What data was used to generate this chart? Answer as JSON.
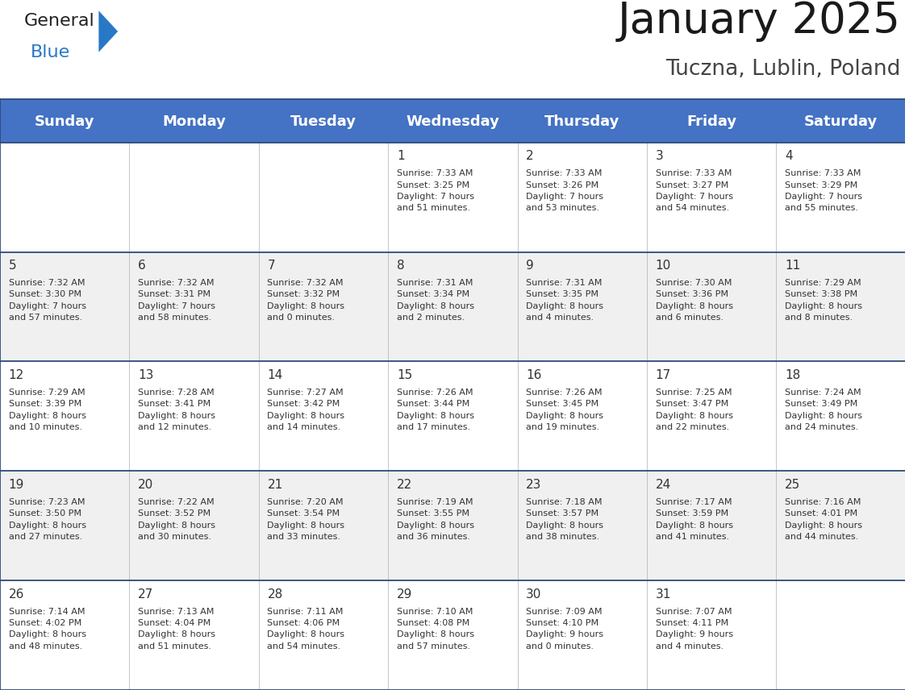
{
  "title": "January 2025",
  "subtitle": "Tuczna, Lublin, Poland",
  "header_bg": "#4472C4",
  "header_text_color": "#FFFFFF",
  "header_font_size": 13,
  "day_names": [
    "Sunday",
    "Monday",
    "Tuesday",
    "Wednesday",
    "Thursday",
    "Friday",
    "Saturday"
  ],
  "title_font_size": 38,
  "subtitle_font_size": 19,
  "cell_text_color": "#333333",
  "cell_number_color": "#333333",
  "odd_row_bg": "#FFFFFF",
  "even_row_bg": "#F0F0F0",
  "border_color": "#2E4A7A",
  "logo_general_color": "#222222",
  "logo_blue_color": "#2878C8",
  "weeks": [
    [
      {
        "day": null,
        "text": ""
      },
      {
        "day": null,
        "text": ""
      },
      {
        "day": null,
        "text": ""
      },
      {
        "day": 1,
        "text": "Sunrise: 7:33 AM\nSunset: 3:25 PM\nDaylight: 7 hours\nand 51 minutes."
      },
      {
        "day": 2,
        "text": "Sunrise: 7:33 AM\nSunset: 3:26 PM\nDaylight: 7 hours\nand 53 minutes."
      },
      {
        "day": 3,
        "text": "Sunrise: 7:33 AM\nSunset: 3:27 PM\nDaylight: 7 hours\nand 54 minutes."
      },
      {
        "day": 4,
        "text": "Sunrise: 7:33 AM\nSunset: 3:29 PM\nDaylight: 7 hours\nand 55 minutes."
      }
    ],
    [
      {
        "day": 5,
        "text": "Sunrise: 7:32 AM\nSunset: 3:30 PM\nDaylight: 7 hours\nand 57 minutes."
      },
      {
        "day": 6,
        "text": "Sunrise: 7:32 AM\nSunset: 3:31 PM\nDaylight: 7 hours\nand 58 minutes."
      },
      {
        "day": 7,
        "text": "Sunrise: 7:32 AM\nSunset: 3:32 PM\nDaylight: 8 hours\nand 0 minutes."
      },
      {
        "day": 8,
        "text": "Sunrise: 7:31 AM\nSunset: 3:34 PM\nDaylight: 8 hours\nand 2 minutes."
      },
      {
        "day": 9,
        "text": "Sunrise: 7:31 AM\nSunset: 3:35 PM\nDaylight: 8 hours\nand 4 minutes."
      },
      {
        "day": 10,
        "text": "Sunrise: 7:30 AM\nSunset: 3:36 PM\nDaylight: 8 hours\nand 6 minutes."
      },
      {
        "day": 11,
        "text": "Sunrise: 7:29 AM\nSunset: 3:38 PM\nDaylight: 8 hours\nand 8 minutes."
      }
    ],
    [
      {
        "day": 12,
        "text": "Sunrise: 7:29 AM\nSunset: 3:39 PM\nDaylight: 8 hours\nand 10 minutes."
      },
      {
        "day": 13,
        "text": "Sunrise: 7:28 AM\nSunset: 3:41 PM\nDaylight: 8 hours\nand 12 minutes."
      },
      {
        "day": 14,
        "text": "Sunrise: 7:27 AM\nSunset: 3:42 PM\nDaylight: 8 hours\nand 14 minutes."
      },
      {
        "day": 15,
        "text": "Sunrise: 7:26 AM\nSunset: 3:44 PM\nDaylight: 8 hours\nand 17 minutes."
      },
      {
        "day": 16,
        "text": "Sunrise: 7:26 AM\nSunset: 3:45 PM\nDaylight: 8 hours\nand 19 minutes."
      },
      {
        "day": 17,
        "text": "Sunrise: 7:25 AM\nSunset: 3:47 PM\nDaylight: 8 hours\nand 22 minutes."
      },
      {
        "day": 18,
        "text": "Sunrise: 7:24 AM\nSunset: 3:49 PM\nDaylight: 8 hours\nand 24 minutes."
      }
    ],
    [
      {
        "day": 19,
        "text": "Sunrise: 7:23 AM\nSunset: 3:50 PM\nDaylight: 8 hours\nand 27 minutes."
      },
      {
        "day": 20,
        "text": "Sunrise: 7:22 AM\nSunset: 3:52 PM\nDaylight: 8 hours\nand 30 minutes."
      },
      {
        "day": 21,
        "text": "Sunrise: 7:20 AM\nSunset: 3:54 PM\nDaylight: 8 hours\nand 33 minutes."
      },
      {
        "day": 22,
        "text": "Sunrise: 7:19 AM\nSunset: 3:55 PM\nDaylight: 8 hours\nand 36 minutes."
      },
      {
        "day": 23,
        "text": "Sunrise: 7:18 AM\nSunset: 3:57 PM\nDaylight: 8 hours\nand 38 minutes."
      },
      {
        "day": 24,
        "text": "Sunrise: 7:17 AM\nSunset: 3:59 PM\nDaylight: 8 hours\nand 41 minutes."
      },
      {
        "day": 25,
        "text": "Sunrise: 7:16 AM\nSunset: 4:01 PM\nDaylight: 8 hours\nand 44 minutes."
      }
    ],
    [
      {
        "day": 26,
        "text": "Sunrise: 7:14 AM\nSunset: 4:02 PM\nDaylight: 8 hours\nand 48 minutes."
      },
      {
        "day": 27,
        "text": "Sunrise: 7:13 AM\nSunset: 4:04 PM\nDaylight: 8 hours\nand 51 minutes."
      },
      {
        "day": 28,
        "text": "Sunrise: 7:11 AM\nSunset: 4:06 PM\nDaylight: 8 hours\nand 54 minutes."
      },
      {
        "day": 29,
        "text": "Sunrise: 7:10 AM\nSunset: 4:08 PM\nDaylight: 8 hours\nand 57 minutes."
      },
      {
        "day": 30,
        "text": "Sunrise: 7:09 AM\nSunset: 4:10 PM\nDaylight: 9 hours\nand 0 minutes."
      },
      {
        "day": 31,
        "text": "Sunrise: 7:07 AM\nSunset: 4:11 PM\nDaylight: 9 hours\nand 4 minutes."
      },
      {
        "day": null,
        "text": ""
      }
    ]
  ]
}
